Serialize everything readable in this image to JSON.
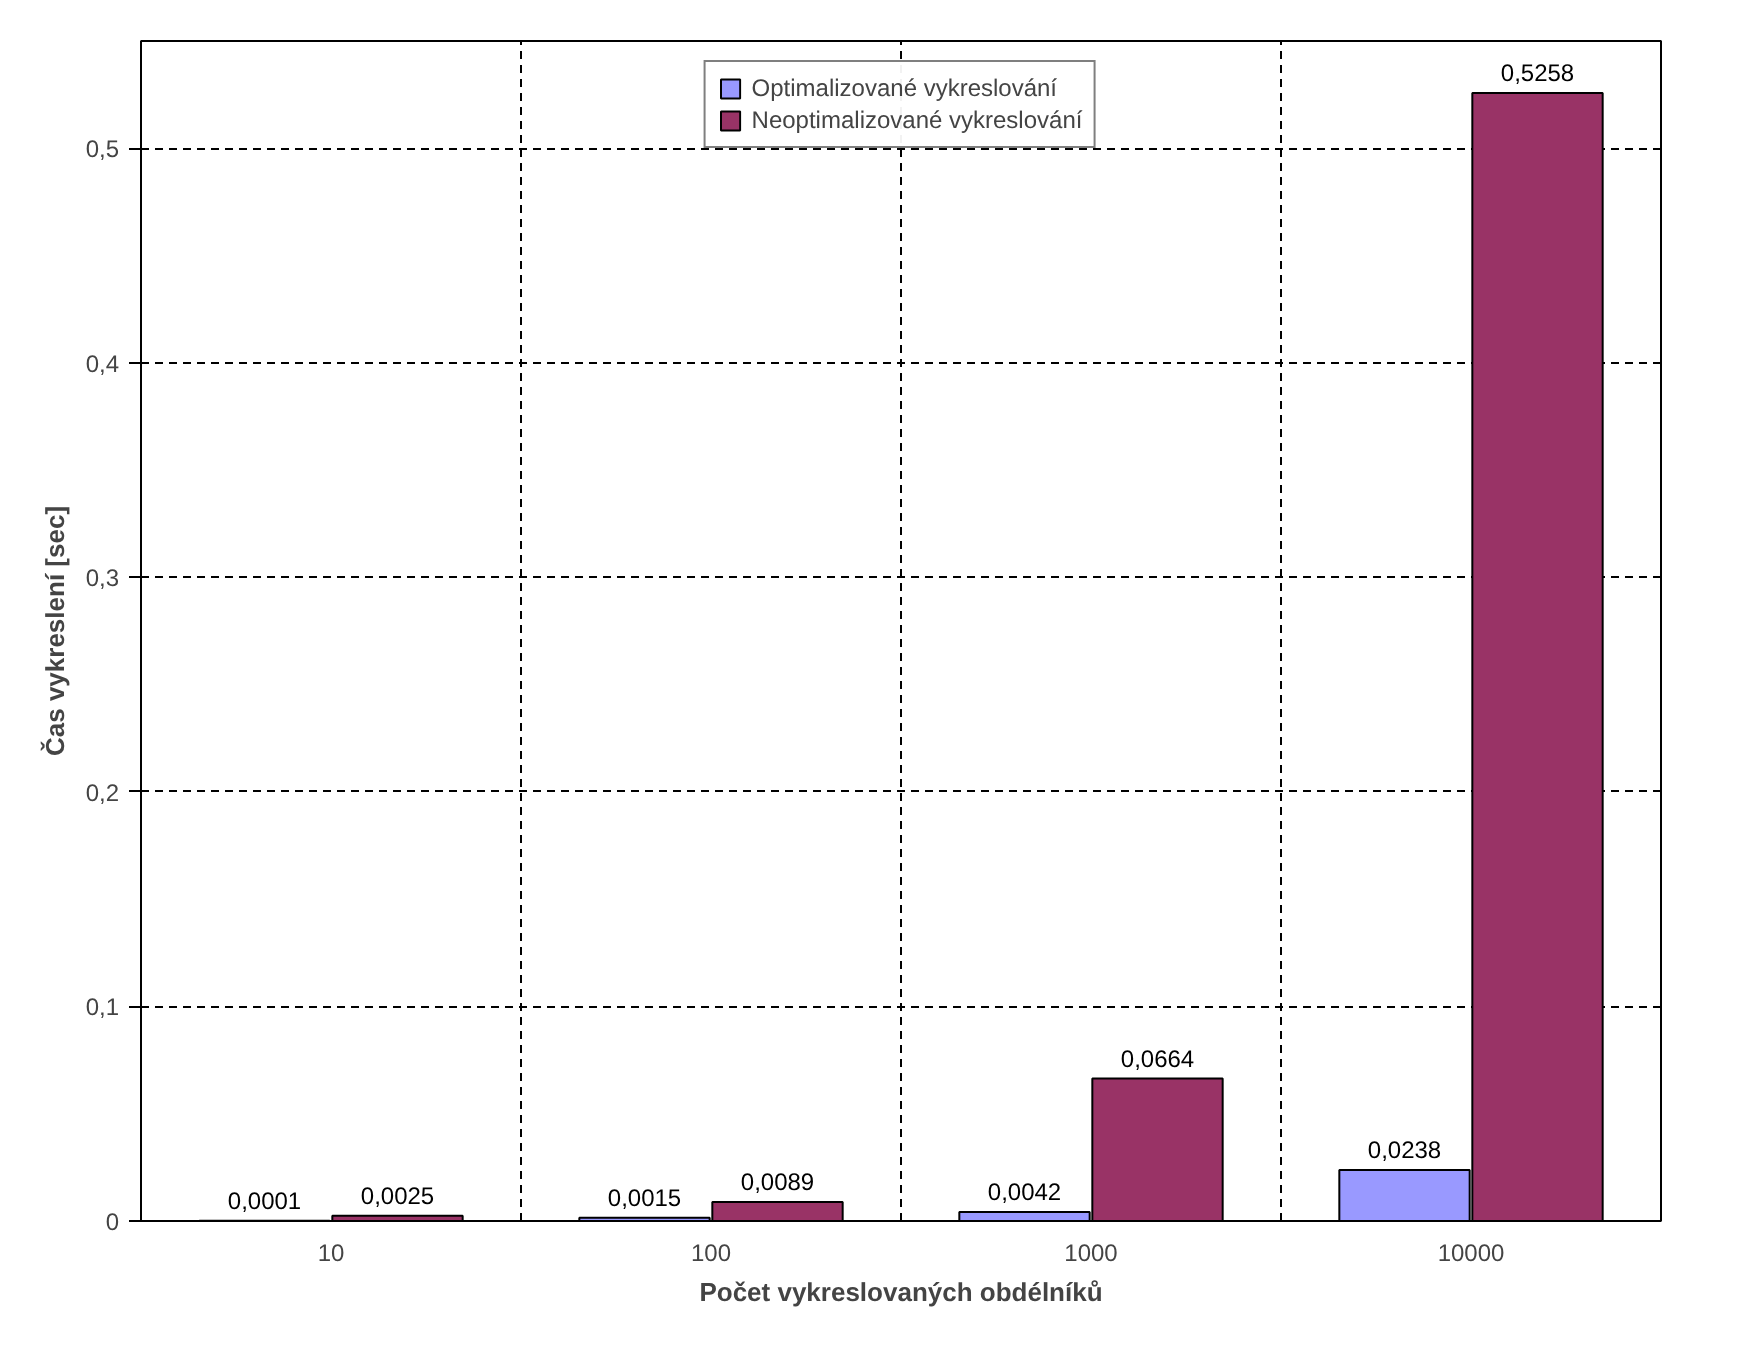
{
  "chart_data": {
    "type": "bar",
    "xlabel": "Počet vykreslovaných obdélníků",
    "ylabel": "Čas vykreslení [sec]",
    "categories": [
      "10",
      "100",
      "1000",
      "10000"
    ],
    "series": [
      {
        "name": "Optimalizované vykreslování",
        "color": "#9999ff",
        "values": [
          0.0001,
          0.0015,
          0.0042,
          0.0238
        ],
        "value_labels": [
          "0,0001",
          "0,0015",
          "0,0042",
          "0,0238"
        ]
      },
      {
        "name": "Neoptimalizované vykreslování",
        "color": "#993366",
        "values": [
          0.0025,
          0.0089,
          0.0664,
          0.5258
        ],
        "value_labels": [
          "0,0025",
          "0,0089",
          "0,0664",
          "0,5258"
        ]
      }
    ],
    "ylim": [
      0,
      0.55
    ],
    "yticks": [
      0,
      {
        "value": 0.1,
        "label": "0,1"
      },
      {
        "value": 0.2,
        "label": "0,2"
      },
      {
        "value": 0.3,
        "label": "0,3"
      },
      {
        "value": 0.4,
        "label": "0,4"
      },
      {
        "value": 0.5,
        "label": "0,5"
      }
    ],
    "grid": true,
    "legend": "top"
  }
}
